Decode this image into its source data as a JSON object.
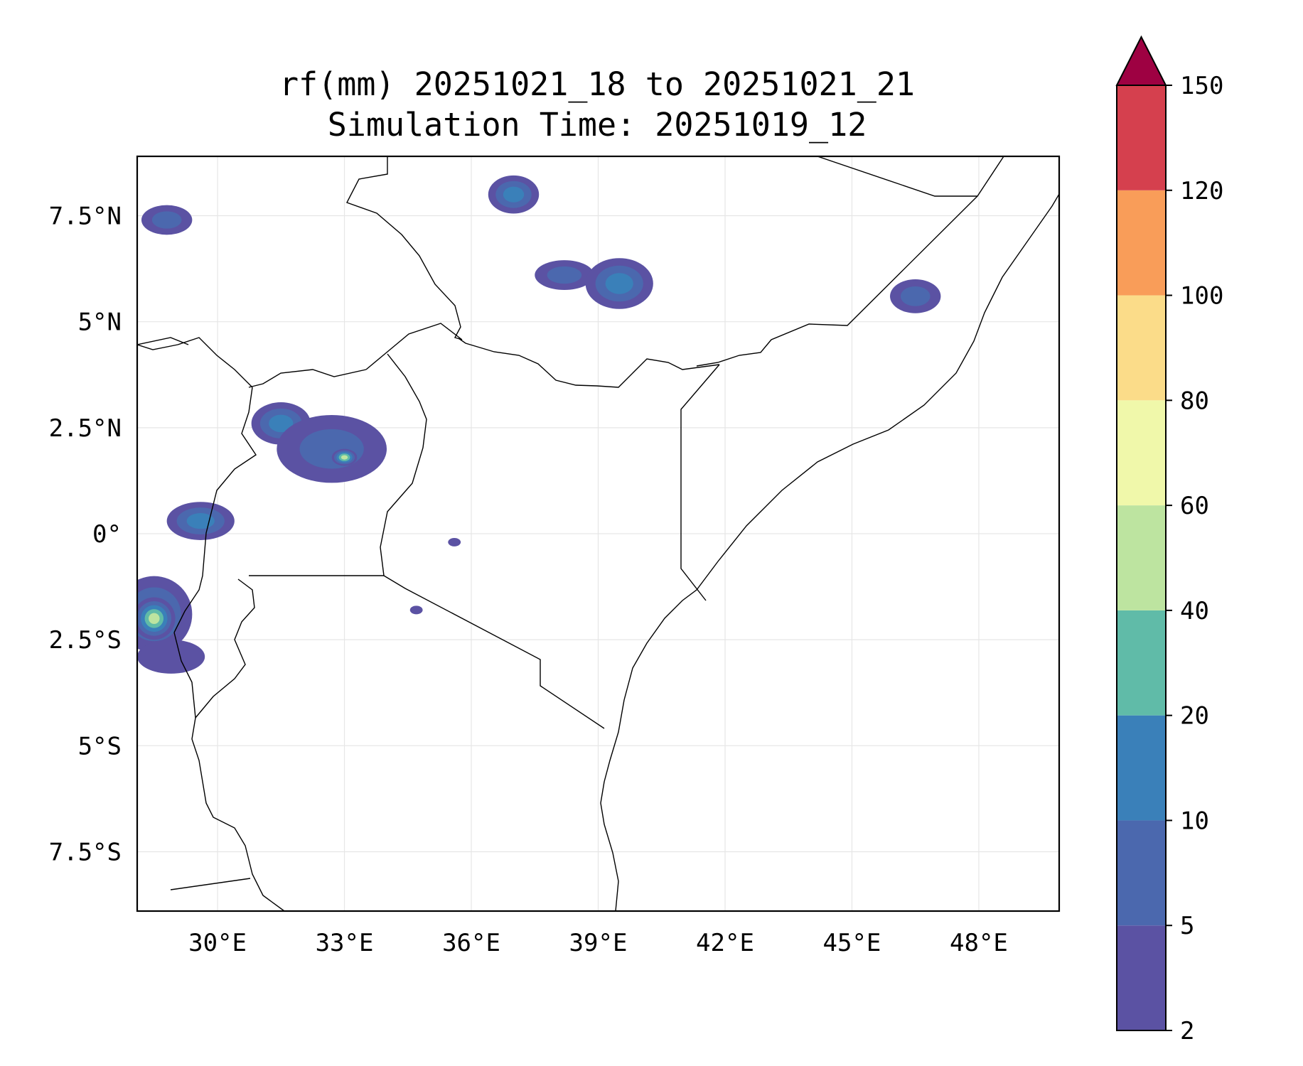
{
  "chart_data": {
    "type": "map",
    "title_lines": [
      "rf(mm) 20251021_18 to 20251021_21",
      "Simulation Time: 20251019_12"
    ],
    "variable": "rf(mm)",
    "lon_range": [
      28.1,
      49.9
    ],
    "lat_range": [
      -8.9,
      8.9
    ],
    "x_ticks": [
      30,
      33,
      36,
      39,
      42,
      45,
      48
    ],
    "x_tick_labels": [
      "30°E",
      "33°E",
      "36°E",
      "39°E",
      "42°E",
      "45°E",
      "48°E"
    ],
    "y_ticks": [
      7.5,
      5,
      2.5,
      0,
      -2.5,
      -5,
      -7.5
    ],
    "y_tick_labels": [
      "7.5°N",
      "5°N",
      "2.5°N",
      "0°",
      "2.5°S",
      "5°S",
      "7.5°S"
    ],
    "colorbar": {
      "levels": [
        2,
        5,
        10,
        20,
        40,
        60,
        80,
        100,
        120,
        150
      ],
      "tick_labels": [
        "2",
        "5",
        "10",
        "20",
        "40",
        "60",
        "80",
        "100",
        "120",
        "150"
      ],
      "colors": [
        "#5b52a3",
        "#4b68ae",
        "#3a80b9",
        "#60bba8",
        "#bde4a0",
        "#f0f8aa",
        "#fbdc89",
        "#f99d59",
        "#d5404e",
        "#9e0142"
      ],
      "extend": "max"
    },
    "rain_cells": [
      {
        "lon": 28.8,
        "lat": 7.4,
        "rx": 0.6,
        "ry": 0.35,
        "level": 1
      },
      {
        "lon": 37.0,
        "lat": 8.0,
        "rx": 0.6,
        "ry": 0.45,
        "level": 2
      },
      {
        "lon": 38.2,
        "lat": 6.1,
        "rx": 0.7,
        "ry": 0.35,
        "level": 1
      },
      {
        "lon": 39.5,
        "lat": 5.9,
        "rx": 0.8,
        "ry": 0.6,
        "level": 2
      },
      {
        "lon": 46.5,
        "lat": 5.6,
        "rx": 0.6,
        "ry": 0.4,
        "level": 1
      },
      {
        "lon": 31.5,
        "lat": 2.6,
        "rx": 0.7,
        "ry": 0.5,
        "level": 2
      },
      {
        "lon": 32.7,
        "lat": 2.0,
        "rx": 1.3,
        "ry": 0.8,
        "level": 1
      },
      {
        "lon": 33.0,
        "lat": 1.8,
        "rx": 0.3,
        "ry": 0.2,
        "level": 4
      },
      {
        "lon": 29.6,
        "lat": 0.3,
        "rx": 0.8,
        "ry": 0.45,
        "level": 2
      },
      {
        "lon": 28.5,
        "lat": -1.9,
        "rx": 0.9,
        "ry": 0.9,
        "level": 2
      },
      {
        "lon": 28.5,
        "lat": -2.0,
        "rx": 0.5,
        "ry": 0.5,
        "level": 4
      },
      {
        "lon": 28.9,
        "lat": -2.9,
        "rx": 0.8,
        "ry": 0.4,
        "level": 0
      },
      {
        "lon": 35.6,
        "lat": -0.2,
        "rx": 0.15,
        "ry": 0.1,
        "level": 0
      },
      {
        "lon": 34.7,
        "lat": -1.8,
        "rx": 0.15,
        "ry": 0.1,
        "level": 0
      }
    ]
  }
}
